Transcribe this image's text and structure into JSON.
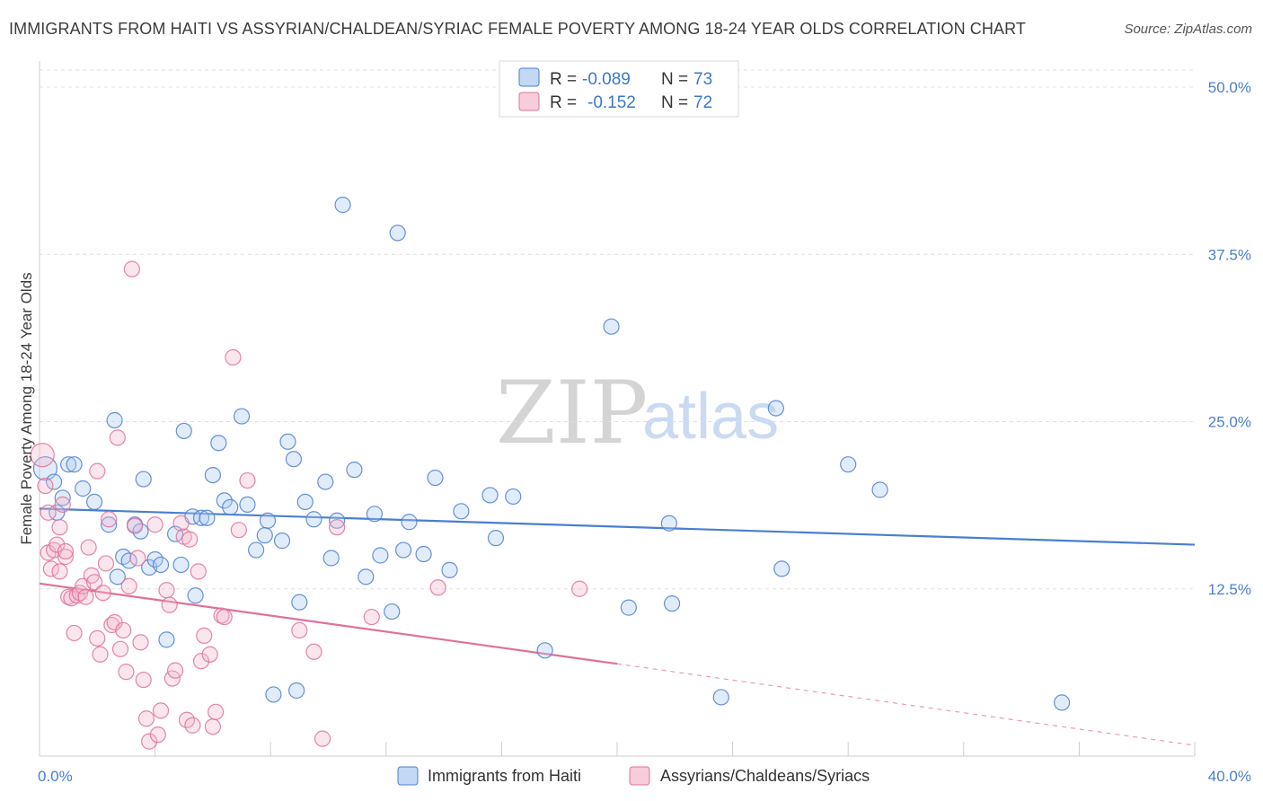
{
  "title": "IMMIGRANTS FROM HAITI VS ASSYRIAN/CHALDEAN/SYRIAC FEMALE POVERTY AMONG 18-24 YEAR OLDS CORRELATION CHART",
  "source": "Source: ZipAtlas.com",
  "watermark": {
    "zip": "ZIP",
    "atlas": "atlas"
  },
  "colors": {
    "blue": "#4a7fd0",
    "blue_fill": "#aac8f0",
    "pink": "#e0709a",
    "pink_fill": "#f4b8cc",
    "grid": "#e0e0e0"
  },
  "legend": {
    "r_label": "R =",
    "n_label": "N =",
    "series": [
      {
        "r": "-0.089",
        "n": "73"
      },
      {
        "r": "-0.152",
        "n": "72"
      }
    ]
  },
  "chart_data": {
    "type": "scatter",
    "title": "IMMIGRANTS FROM HAITI VS ASSYRIAN/CHALDEAN/SYRIAC FEMALE POVERTY AMONG 18-24 YEAR OLDS CORRELATION CHART",
    "xlabel": "",
    "ylabel": "Female Poverty Among 18-24 Year Olds",
    "xlim": [
      0,
      40
    ],
    "ylim": [
      0,
      50
    ],
    "x_tick_labels": [
      "0.0%",
      "40.0%"
    ],
    "y_ticks": [
      12.5,
      25.0,
      37.5,
      50.0
    ],
    "y_tick_labels": [
      "12.5%",
      "25.0%",
      "37.5%",
      "50.0%"
    ],
    "grid": true,
    "series": [
      {
        "name": "Immigrants from Haiti",
        "trend": {
          "x0": 0,
          "y0": 18.5,
          "x1": 40,
          "y1": 15.8
        },
        "points": [
          [
            0.2,
            21.5
          ],
          [
            0.5,
            20.5
          ],
          [
            0.6,
            18.2
          ],
          [
            0.8,
            19.3
          ],
          [
            1.0,
            21.8
          ],
          [
            1.2,
            21.8
          ],
          [
            1.5,
            20.0
          ],
          [
            1.9,
            19.0
          ],
          [
            2.4,
            17.3
          ],
          [
            2.6,
            25.1
          ],
          [
            2.7,
            13.4
          ],
          [
            2.9,
            14.9
          ],
          [
            3.1,
            14.6
          ],
          [
            3.3,
            17.3
          ],
          [
            3.5,
            16.8
          ],
          [
            3.6,
            20.7
          ],
          [
            3.8,
            14.1
          ],
          [
            4.0,
            14.7
          ],
          [
            4.2,
            14.3
          ],
          [
            4.4,
            8.7
          ],
          [
            4.7,
            16.6
          ],
          [
            4.9,
            14.3
          ],
          [
            5.0,
            24.3
          ],
          [
            5.3,
            17.9
          ],
          [
            5.4,
            12.0
          ],
          [
            5.6,
            17.8
          ],
          [
            5.8,
            17.8
          ],
          [
            6.0,
            21.0
          ],
          [
            6.2,
            23.4
          ],
          [
            6.4,
            19.1
          ],
          [
            6.6,
            18.6
          ],
          [
            7.0,
            25.4
          ],
          [
            7.2,
            18.8
          ],
          [
            7.5,
            15.4
          ],
          [
            7.8,
            16.5
          ],
          [
            7.9,
            17.6
          ],
          [
            8.1,
            4.6
          ],
          [
            8.4,
            16.1
          ],
          [
            8.6,
            23.5
          ],
          [
            8.8,
            22.2
          ],
          [
            8.9,
            4.9
          ],
          [
            9.0,
            11.5
          ],
          [
            9.2,
            19.0
          ],
          [
            9.5,
            17.7
          ],
          [
            9.9,
            20.5
          ],
          [
            10.1,
            14.8
          ],
          [
            10.3,
            17.6
          ],
          [
            10.5,
            41.2
          ],
          [
            10.9,
            21.4
          ],
          [
            11.3,
            13.4
          ],
          [
            11.6,
            18.1
          ],
          [
            11.8,
            15.0
          ],
          [
            12.2,
            10.8
          ],
          [
            12.4,
            39.1
          ],
          [
            12.6,
            15.4
          ],
          [
            12.8,
            17.5
          ],
          [
            13.3,
            15.1
          ],
          [
            13.7,
            20.8
          ],
          [
            14.2,
            13.9
          ],
          [
            14.6,
            18.3
          ],
          [
            15.6,
            19.5
          ],
          [
            15.8,
            16.3
          ],
          [
            16.4,
            19.4
          ],
          [
            17.5,
            7.9
          ],
          [
            19.8,
            32.1
          ],
          [
            20.4,
            11.1
          ],
          [
            21.8,
            17.4
          ],
          [
            21.9,
            11.4
          ],
          [
            23.6,
            4.4
          ],
          [
            25.5,
            26.0
          ],
          [
            25.7,
            14.0
          ],
          [
            28.0,
            21.8
          ],
          [
            29.1,
            19.9
          ],
          [
            35.4,
            4.0
          ]
        ]
      },
      {
        "name": "Assyrians/Chaldeans/Syriacs",
        "trend": {
          "x0": 0,
          "y0": 12.9,
          "x1": 20,
          "y1": 6.9
        },
        "dashed_extension": {
          "x0": 20,
          "y0": 6.9,
          "x1": 40,
          "y1": 0.8
        },
        "points": [
          [
            0.1,
            22.5
          ],
          [
            0.2,
            20.2
          ],
          [
            0.3,
            18.2
          ],
          [
            0.3,
            15.2
          ],
          [
            0.4,
            14.0
          ],
          [
            0.5,
            15.4
          ],
          [
            0.6,
            15.8
          ],
          [
            0.7,
            13.8
          ],
          [
            0.7,
            17.1
          ],
          [
            0.8,
            18.8
          ],
          [
            0.9,
            14.9
          ],
          [
            0.9,
            15.3
          ],
          [
            1.0,
            11.9
          ],
          [
            1.1,
            11.8
          ],
          [
            1.2,
            9.2
          ],
          [
            1.3,
            12.0
          ],
          [
            1.4,
            12.2
          ],
          [
            1.5,
            12.7
          ],
          [
            1.6,
            11.9
          ],
          [
            1.7,
            15.6
          ],
          [
            1.8,
            13.5
          ],
          [
            1.9,
            13.0
          ],
          [
            2.0,
            8.8
          ],
          [
            2.0,
            21.3
          ],
          [
            2.1,
            7.6
          ],
          [
            2.2,
            12.2
          ],
          [
            2.3,
            14.4
          ],
          [
            2.4,
            17.7
          ],
          [
            2.5,
            9.8
          ],
          [
            2.6,
            10.0
          ],
          [
            2.7,
            23.8
          ],
          [
            2.8,
            8.0
          ],
          [
            2.9,
            9.4
          ],
          [
            3.0,
            6.3
          ],
          [
            3.1,
            12.7
          ],
          [
            3.2,
            36.4
          ],
          [
            3.3,
            17.2
          ],
          [
            3.4,
            14.8
          ],
          [
            3.5,
            8.5
          ],
          [
            3.6,
            5.7
          ],
          [
            3.7,
            2.8
          ],
          [
            3.8,
            1.1
          ],
          [
            4.0,
            17.3
          ],
          [
            4.1,
            1.6
          ],
          [
            4.2,
            3.4
          ],
          [
            4.4,
            12.4
          ],
          [
            4.5,
            11.3
          ],
          [
            4.6,
            5.8
          ],
          [
            4.7,
            6.4
          ],
          [
            4.9,
            17.4
          ],
          [
            5.0,
            16.4
          ],
          [
            5.1,
            2.7
          ],
          [
            5.2,
            16.2
          ],
          [
            5.3,
            2.3
          ],
          [
            5.5,
            13.8
          ],
          [
            5.6,
            7.1
          ],
          [
            5.7,
            9.0
          ],
          [
            5.9,
            7.6
          ],
          [
            6.0,
            2.2
          ],
          [
            6.1,
            3.3
          ],
          [
            6.3,
            10.5
          ],
          [
            6.4,
            10.4
          ],
          [
            6.7,
            29.8
          ],
          [
            6.9,
            16.9
          ],
          [
            7.2,
            20.6
          ],
          [
            9.0,
            9.4
          ],
          [
            9.5,
            7.8
          ],
          [
            9.8,
            1.3
          ],
          [
            10.3,
            17.1
          ],
          [
            11.5,
            10.4
          ],
          [
            13.8,
            12.6
          ],
          [
            18.7,
            12.5
          ]
        ]
      }
    ]
  },
  "bottom_legend": [
    "Immigrants from Haiti",
    "Assyrians/Chaldeans/Syriacs"
  ]
}
